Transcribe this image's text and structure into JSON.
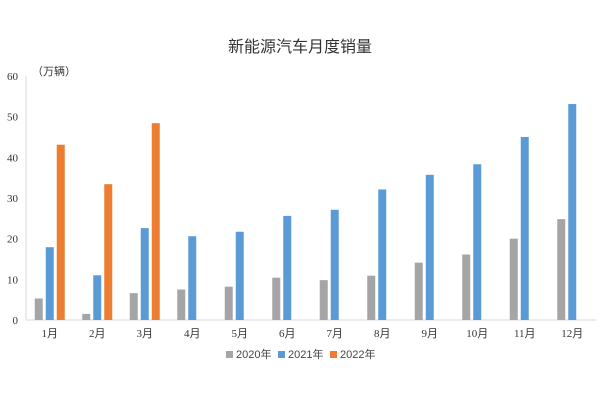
{
  "chart_data": {
    "type": "bar",
    "title": "新能源汽车月度销量",
    "y_unit_label": "（万辆）",
    "categories": [
      "1月",
      "2月",
      "3月",
      "4月",
      "5月",
      "6月",
      "7月",
      "8月",
      "9月",
      "10月",
      "11月",
      "12月"
    ],
    "y_ticks": [
      "0",
      "10",
      "20",
      "30",
      "40",
      "50",
      "60"
    ],
    "ylim": [
      0,
      60
    ],
    "grid": false,
    "legend_position": "bottom",
    "series": [
      {
        "name": "2020年",
        "color": "#a5a5a5",
        "values": [
          5.3,
          1.5,
          6.6,
          7.5,
          8.2,
          10.4,
          9.8,
          10.9,
          14.1,
          16.1,
          20.0,
          24.8
        ]
      },
      {
        "name": "2021年",
        "color": "#5b9bd5",
        "values": [
          17.9,
          11.0,
          22.6,
          20.6,
          21.7,
          25.6,
          27.1,
          32.1,
          35.7,
          38.3,
          45.0,
          53.1
        ]
      },
      {
        "name": "2022年",
        "color": "#ed7d31",
        "values": [
          43.1,
          33.4,
          48.4,
          null,
          null,
          null,
          null,
          null,
          null,
          null,
          null,
          null
        ]
      }
    ]
  }
}
